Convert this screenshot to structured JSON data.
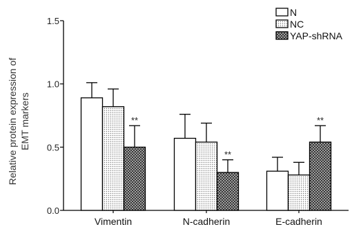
{
  "chart_data": {
    "type": "bar",
    "title": "",
    "xlabel": "",
    "ylabel": "Relative protein expression of EMT markers",
    "ylabel_lines": [
      "Relative protein expression of",
      "EMT markers"
    ],
    "ylim": [
      0,
      1.5
    ],
    "yticks": [
      "0.0",
      "0.5",
      "1.0",
      "1.5"
    ],
    "ytick_values": [
      0,
      0.5,
      1.0,
      1.5
    ],
    "categories": [
      "Vimentin",
      "N-cadherin",
      "E-cadherin"
    ],
    "series": [
      {
        "name": "N",
        "pattern": "white",
        "values": [
          0.89,
          0.57,
          0.31
        ],
        "errors": [
          0.12,
          0.19,
          0.11
        ]
      },
      {
        "name": "NC",
        "pattern": "dots",
        "values": [
          0.82,
          0.54,
          0.28
        ],
        "errors": [
          0.14,
          0.15,
          0.1
        ]
      },
      {
        "name": "YAP-shRNA",
        "pattern": "crosshatch",
        "values": [
          0.5,
          0.3,
          0.54
        ],
        "errors": [
          0.17,
          0.1,
          0.13
        ],
        "significance": [
          "**",
          "**",
          "**"
        ]
      }
    ],
    "legend_position": "top-right",
    "grid": false
  }
}
